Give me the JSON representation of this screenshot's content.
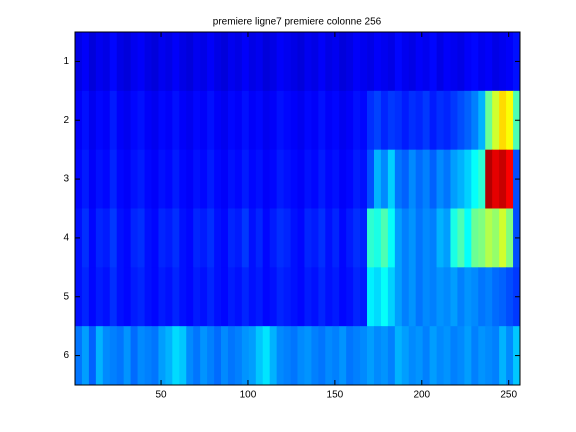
{
  "chart_data": {
    "type": "heatmap",
    "title": "premiere ligne7 premiere colonne 256",
    "colormap": "jet",
    "clim": [
      0,
      1
    ],
    "xlim": [
      0.5,
      256.5
    ],
    "xticks": [
      50,
      100,
      150,
      200,
      250
    ],
    "ylim": [
      0.5,
      6.5
    ],
    "yticks": [
      1,
      2,
      3,
      4,
      5,
      6
    ],
    "y_reversed": true,
    "values": [
      [
        0.1,
        0.12,
        0.09,
        0.11,
        0.1,
        0.13,
        0.1,
        0.09,
        0.11,
        0.12,
        0.1,
        0.09,
        0.11,
        0.1,
        0.12,
        0.1,
        0.09,
        0.11,
        0.1,
        0.12,
        0.1,
        0.09,
        0.11,
        0.1,
        0.12,
        0.1,
        0.11,
        0.09,
        0.1,
        0.12,
        0.11,
        0.1,
        0.09,
        0.11,
        0.1,
        0.12,
        0.1,
        0.11,
        0.09,
        0.1,
        0.12,
        0.11,
        0.1,
        0.12,
        0.11,
        0.1,
        0.13,
        0.11,
        0.1,
        0.12,
        0.11,
        0.13,
        0.1,
        0.12,
        0.11,
        0.1,
        0.12,
        0.13,
        0.11,
        0.12,
        0.1,
        0.11,
        0.12,
        0.14
      ],
      [
        0.12,
        0.14,
        0.11,
        0.13,
        0.12,
        0.15,
        0.12,
        0.11,
        0.13,
        0.14,
        0.12,
        0.11,
        0.13,
        0.12,
        0.14,
        0.12,
        0.11,
        0.13,
        0.12,
        0.14,
        0.12,
        0.11,
        0.13,
        0.12,
        0.14,
        0.12,
        0.13,
        0.11,
        0.12,
        0.14,
        0.13,
        0.12,
        0.11,
        0.13,
        0.12,
        0.14,
        0.12,
        0.13,
        0.11,
        0.12,
        0.14,
        0.13,
        0.17,
        0.19,
        0.16,
        0.18,
        0.17,
        0.15,
        0.17,
        0.16,
        0.18,
        0.15,
        0.17,
        0.16,
        0.18,
        0.2,
        0.22,
        0.25,
        0.3,
        0.48,
        0.58,
        0.66,
        0.62,
        0.45
      ],
      [
        0.13,
        0.15,
        0.12,
        0.14,
        0.13,
        0.16,
        0.13,
        0.12,
        0.14,
        0.15,
        0.13,
        0.12,
        0.14,
        0.13,
        0.15,
        0.13,
        0.12,
        0.14,
        0.13,
        0.15,
        0.13,
        0.12,
        0.14,
        0.13,
        0.15,
        0.13,
        0.14,
        0.12,
        0.13,
        0.15,
        0.14,
        0.13,
        0.12,
        0.14,
        0.13,
        0.15,
        0.13,
        0.14,
        0.12,
        0.13,
        0.15,
        0.14,
        0.2,
        0.3,
        0.26,
        0.33,
        0.24,
        0.22,
        0.26,
        0.23,
        0.25,
        0.22,
        0.26,
        0.24,
        0.28,
        0.3,
        0.33,
        0.38,
        0.42,
        0.95,
        0.9,
        0.93,
        0.88,
        0.2
      ],
      [
        0.14,
        0.17,
        0.13,
        0.16,
        0.15,
        0.18,
        0.14,
        0.13,
        0.16,
        0.17,
        0.14,
        0.13,
        0.16,
        0.15,
        0.17,
        0.14,
        0.13,
        0.16,
        0.15,
        0.17,
        0.14,
        0.13,
        0.16,
        0.15,
        0.18,
        0.14,
        0.16,
        0.13,
        0.15,
        0.17,
        0.16,
        0.14,
        0.13,
        0.16,
        0.15,
        0.17,
        0.14,
        0.16,
        0.13,
        0.15,
        0.17,
        0.16,
        0.42,
        0.4,
        0.45,
        0.38,
        0.28,
        0.25,
        0.27,
        0.24,
        0.26,
        0.25,
        0.3,
        0.28,
        0.4,
        0.45,
        0.38,
        0.48,
        0.5,
        0.55,
        0.52,
        0.58,
        0.5,
        0.2
      ],
      [
        0.14,
        0.16,
        0.13,
        0.15,
        0.14,
        0.17,
        0.14,
        0.13,
        0.15,
        0.16,
        0.14,
        0.13,
        0.15,
        0.14,
        0.16,
        0.14,
        0.13,
        0.15,
        0.14,
        0.16,
        0.14,
        0.13,
        0.15,
        0.14,
        0.16,
        0.14,
        0.15,
        0.13,
        0.14,
        0.16,
        0.15,
        0.14,
        0.13,
        0.15,
        0.14,
        0.16,
        0.14,
        0.15,
        0.13,
        0.14,
        0.16,
        0.15,
        0.36,
        0.34,
        0.38,
        0.33,
        0.28,
        0.25,
        0.27,
        0.24,
        0.26,
        0.25,
        0.27,
        0.26,
        0.28,
        0.25,
        0.27,
        0.26,
        0.24,
        0.25,
        0.23,
        0.22,
        0.2,
        0.18
      ],
      [
        0.24,
        0.28,
        0.22,
        0.3,
        0.26,
        0.25,
        0.24,
        0.27,
        0.23,
        0.26,
        0.25,
        0.24,
        0.28,
        0.3,
        0.34,
        0.32,
        0.26,
        0.24,
        0.27,
        0.25,
        0.23,
        0.26,
        0.24,
        0.25,
        0.27,
        0.28,
        0.32,
        0.35,
        0.3,
        0.26,
        0.25,
        0.24,
        0.26,
        0.27,
        0.25,
        0.24,
        0.26,
        0.25,
        0.27,
        0.24,
        0.25,
        0.26,
        0.28,
        0.26,
        0.27,
        0.25,
        0.3,
        0.28,
        0.26,
        0.27,
        0.25,
        0.28,
        0.26,
        0.27,
        0.25,
        0.26,
        0.28,
        0.25,
        0.27,
        0.26,
        0.25,
        0.3,
        0.26,
        0.32
      ]
    ]
  }
}
